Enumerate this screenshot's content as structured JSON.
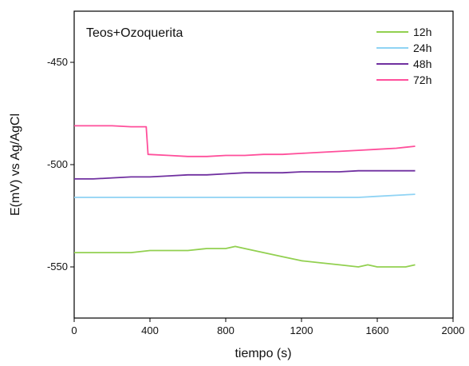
{
  "chart_data": {
    "type": "line",
    "title": "",
    "annotation": "Teos+Ozoquerita",
    "xlabel": "tiempo (s)",
    "ylabel": "E(mV) vs Ag/AgCl",
    "xlim": [
      0,
      2000
    ],
    "ylim": [
      -575,
      -425
    ],
    "x_ticks": [
      0,
      400,
      800,
      1200,
      1600,
      2000
    ],
    "y_ticks": [
      -450,
      -500,
      -550
    ],
    "grid": false,
    "legend_position": "top-right",
    "series": [
      {
        "name": "12h",
        "color": "#92d050",
        "x": [
          0,
          100,
          200,
          300,
          400,
          500,
          600,
          700,
          800,
          850,
          900,
          1000,
          1100,
          1200,
          1300,
          1400,
          1500,
          1550,
          1600,
          1700,
          1750,
          1800
        ],
        "y": [
          -543,
          -543,
          -543,
          -543,
          -542,
          -542,
          -542,
          -541,
          -541,
          -540,
          -541,
          -543,
          -545,
          -547,
          -548,
          -549,
          -550,
          -549,
          -550,
          -550,
          -550,
          -549
        ]
      },
      {
        "name": "24h",
        "color": "#8fd3f4",
        "x": [
          0,
          100,
          200,
          300,
          400,
          500,
          600,
          800,
          1000,
          1200,
          1400,
          1500,
          1600,
          1700,
          1800
        ],
        "y": [
          -516,
          -516,
          -516,
          -516,
          -516,
          -516,
          -516,
          -516,
          -516,
          -516,
          -516,
          -516,
          -515.5,
          -515,
          -514.5
        ]
      },
      {
        "name": "48h",
        "color": "#7030a0",
        "x": [
          0,
          100,
          200,
          300,
          400,
          500,
          600,
          700,
          800,
          900,
          1000,
          1100,
          1200,
          1300,
          1400,
          1500,
          1600,
          1700,
          1800
        ],
        "y": [
          -507,
          -507,
          -506.5,
          -506,
          -506,
          -505.5,
          -505,
          -505,
          -504.5,
          -504,
          -504,
          -504,
          -503.5,
          -503.5,
          -503.5,
          -503,
          -503,
          -503,
          -503
        ]
      },
      {
        "name": "72h",
        "color": "#ff4f9b",
        "x": [
          0,
          100,
          200,
          300,
          380,
          390,
          500,
          600,
          700,
          800,
          900,
          1000,
          1100,
          1200,
          1300,
          1400,
          1500,
          1600,
          1700,
          1800
        ],
        "y": [
          -481,
          -481,
          -481,
          -481.5,
          -481.5,
          -495,
          -495.5,
          -496,
          -496,
          -495.5,
          -495.5,
          -495,
          -495,
          -494.5,
          -494,
          -493.5,
          -493,
          -492.5,
          -492,
          -491
        ]
      }
    ]
  }
}
